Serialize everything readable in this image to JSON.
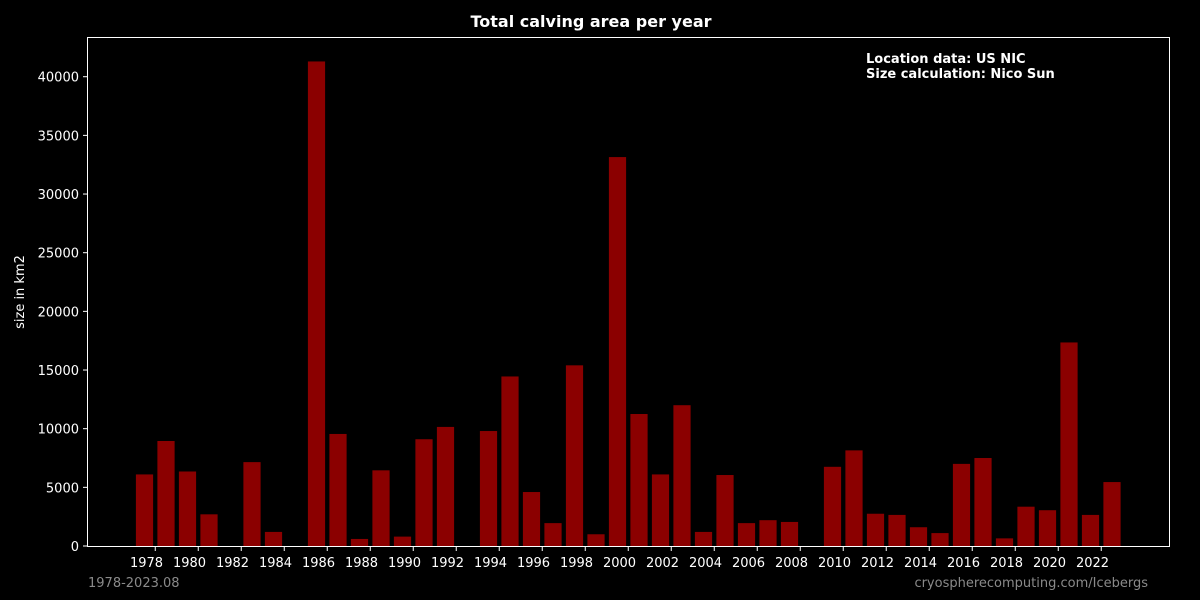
{
  "chart_data": {
    "type": "bar",
    "title": "Total calving area per year",
    "xlabel": "",
    "ylabel": "size in km2",
    "ylim": [
      0,
      43300
    ],
    "yticks": [
      0,
      5000,
      10000,
      15000,
      20000,
      25000,
      30000,
      35000,
      40000
    ],
    "xticks": [
      1978,
      1980,
      1982,
      1984,
      1986,
      1988,
      1990,
      1992,
      1994,
      1996,
      1998,
      2000,
      2002,
      2004,
      2006,
      2008,
      2010,
      2012,
      2014,
      2016,
      2018,
      2020,
      2022
    ],
    "categories": [
      1978,
      1979,
      1980,
      1981,
      1982,
      1983,
      1984,
      1985,
      1986,
      1987,
      1988,
      1989,
      1990,
      1991,
      1992,
      1993,
      1994,
      1995,
      1996,
      1997,
      1998,
      1999,
      2000,
      2001,
      2002,
      2003,
      2004,
      2005,
      2006,
      2007,
      2008,
      2009,
      2010,
      2011,
      2012,
      2013,
      2014,
      2015,
      2016,
      2017,
      2018,
      2019,
      2020,
      2021,
      2022,
      2023
    ],
    "values": [
      6100,
      8950,
      6350,
      2700,
      0,
      7150,
      1200,
      0,
      41300,
      9550,
      600,
      6450,
      800,
      9100,
      10150,
      0,
      9800,
      14450,
      4600,
      1950,
      15400,
      1000,
      33150,
      11250,
      6100,
      12000,
      1200,
      6050,
      1950,
      2200,
      2050,
      0,
      6750,
      8150,
      2750,
      2650,
      1600,
      1100,
      7000,
      7500,
      650,
      3350,
      3050,
      17350,
      2650,
      5450
    ],
    "bar_color": "#8b0000",
    "grid": false,
    "annotations": [
      "Location data: US NIC",
      "Size calculation: Nico Sun"
    ],
    "annotation_position": "top-right",
    "footer_left": "1978-2023.08",
    "footer_right": "cryospherecomputing.com/Icebergs"
  }
}
